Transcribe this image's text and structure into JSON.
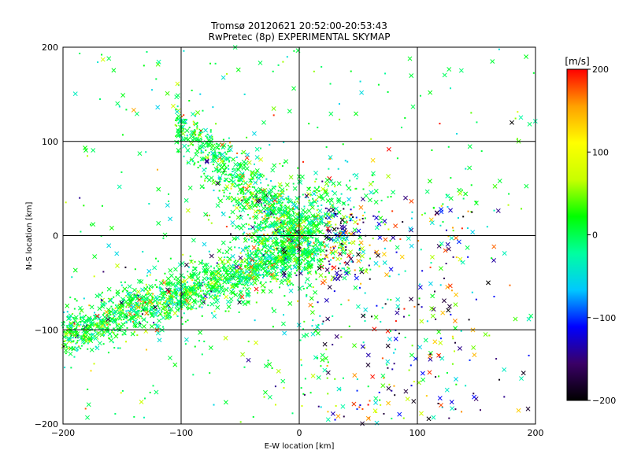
{
  "chart_data": {
    "type": "scatter",
    "title": "Tromsø 20120621 20:52:00-20:53:43",
    "subtitle": "RwPretec (8p) EXPERIMENTAL SKYMAP",
    "xlabel": "E-W location [km]",
    "ylabel": "N-S location [km]",
    "xlim": [
      -200,
      200
    ],
    "ylim": [
      -200,
      200
    ],
    "xticks": [
      "-200",
      "-100",
      "0",
      "100",
      "200"
    ],
    "yticks": [
      "-200",
      "-100",
      "0",
      "100",
      "200"
    ],
    "grid": true,
    "markers": [
      "x",
      "dot"
    ],
    "colorbar": {
      "label": "[m/s]",
      "range": [
        -200,
        200
      ],
      "ticks": [
        "200",
        "100",
        "0",
        "-100",
        "-200"
      ],
      "colors": [
        "#000000",
        "#3a0066",
        "#0000ff",
        "#00c8ff",
        "#00ffa0",
        "#00ff00",
        "#c8ff00",
        "#ffff00",
        "#ffa000",
        "#ff0000"
      ]
    },
    "clusters": [
      {
        "name": "NW-SE band",
        "x_range": [
          -200,
          0
        ],
        "y_range": [
          -110,
          0
        ],
        "trend_slope": 0.4
      },
      {
        "name": "NW arm",
        "x_range": [
          -110,
          10
        ],
        "y_range": [
          0,
          110
        ],
        "trend_slope": -1.2
      },
      {
        "name": "central cluster",
        "center": [
          0,
          0
        ],
        "spread": 40
      },
      {
        "name": "SE scatter",
        "x_range": [
          0,
          150
        ],
        "y_range": [
          -200,
          50
        ]
      }
    ],
    "sample_points": [
      {
        "x": -30,
        "y": 120,
        "v": 0,
        "m": "x"
      },
      {
        "x": -150,
        "y": -75,
        "v": 20,
        "m": "x"
      },
      {
        "x": 20,
        "y": -50,
        "v": 180,
        "m": "x"
      },
      {
        "x": 40,
        "y": -40,
        "v": -120,
        "m": "x"
      },
      {
        "x": 50,
        "y": -20,
        "v": -200,
        "m": "x"
      },
      {
        "x": 120,
        "y": -180,
        "v": 180,
        "m": "x"
      },
      {
        "x": 180,
        "y": 120,
        "v": -200,
        "m": "x"
      },
      {
        "x": 160,
        "y": -50,
        "v": -200,
        "m": "x"
      },
      {
        "x": -120,
        "y": 70,
        "v": 150,
        "m": "dot"
      },
      {
        "x": 90,
        "y": 40,
        "v": -150,
        "m": "x"
      },
      {
        "x": -50,
        "y": 30,
        "v": 0,
        "m": "dot"
      },
      {
        "x": 10,
        "y": 5,
        "v": -40,
        "m": "dot"
      }
    ]
  }
}
